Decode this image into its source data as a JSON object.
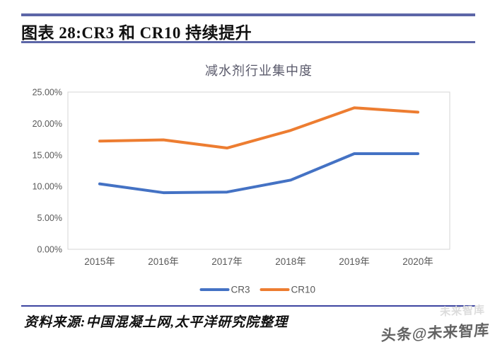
{
  "page": {
    "header": {
      "title": "图表 28:CR3 和 CR10 持续提升"
    },
    "source": {
      "label": "资料来源:中国混凝土网,太平洋研究院整理"
    },
    "watermark": {
      "main": "头条@未来智库",
      "ghost": "未来智库"
    }
  },
  "colors": {
    "header_rule": "#5c66a7",
    "source_rule": "#3d45a0",
    "plot_border": "#d6d6d6",
    "axis_text": "#595959",
    "cr3_blue": "#4472C4",
    "cr10_orange": "#ED7D31"
  },
  "chart_data": {
    "type": "line",
    "title": "减水剂行业集中度",
    "categories": [
      "2015年",
      "2016年",
      "2017年",
      "2018年",
      "2019年",
      "2020年"
    ],
    "series": [
      {
        "name": "CR3",
        "color": "#4472C4",
        "values": [
          10.4,
          9.0,
          9.1,
          11.0,
          15.2,
          15.2
        ]
      },
      {
        "name": "CR10",
        "color": "#ED7D31",
        "values": [
          17.2,
          17.4,
          16.1,
          18.9,
          22.5,
          21.8
        ]
      }
    ],
    "unit": "percent",
    "ylim": [
      0,
      25
    ],
    "ytick_step": 5,
    "ytick_labels": [
      "0.00%",
      "5.00%",
      "10.00%",
      "15.00%",
      "20.00%",
      "25.00%"
    ],
    "grid": false,
    "legend_position": "bottom"
  }
}
